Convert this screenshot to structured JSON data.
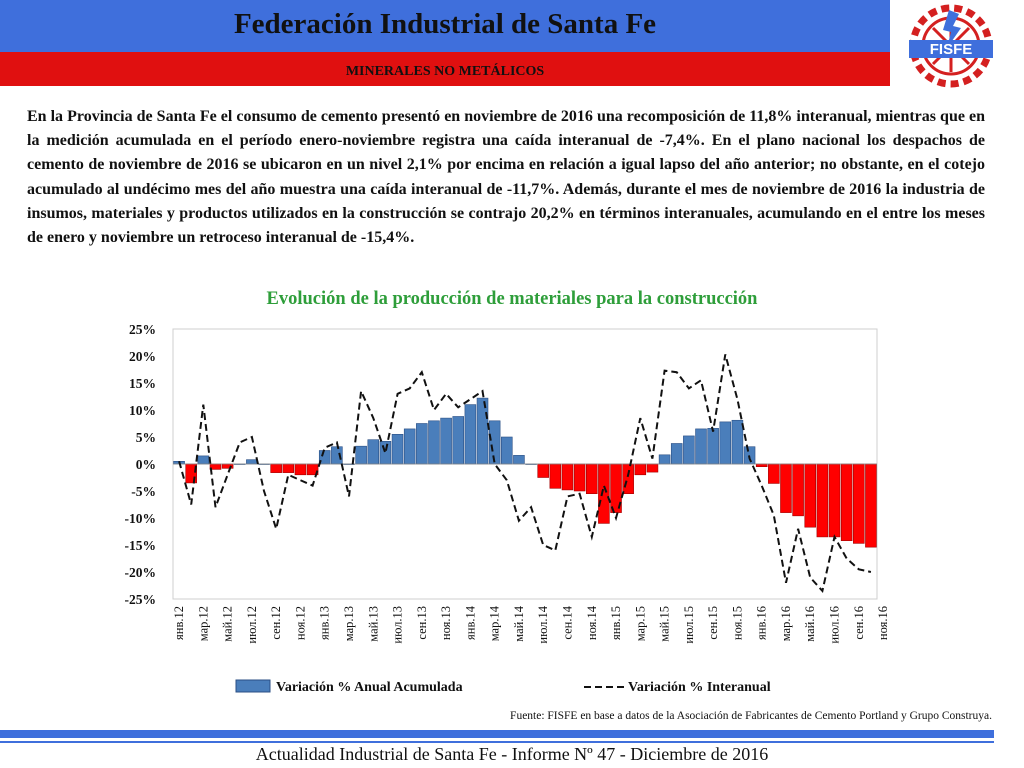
{
  "header": {
    "title": "Federación Industrial de Santa Fe",
    "subtitle": "MINERALES NO METÁLICOS",
    "logo_text": "FISFE",
    "colors": {
      "blue": "#3f6fdc",
      "red": "#e01010"
    }
  },
  "paragraph": "En la Provincia de Santa Fe el consumo de cemento presentó en noviembre de 2016 una recomposición de 11,8% interanual, mientras que en la medición acumulada en el período enero-noviembre registra una caída interanual de -7,4%. En el plano nacional los despachos de cemento de noviembre de 2016 se ubicaron en un nivel 2,1% por encima en relación a igual lapso del año anterior; no obstante, en el cotejo acumulado al undécimo mes del año muestra una caída interanual de -11,7%. Además, durante el mes de noviembre de 2016 la industria de insumos, materiales y productos utilizados en la construcción se contrajo 20,2% en términos interanuales, acumulando en el entre los meses de enero y noviembre un retroceso interanual de -15,4%.",
  "chart_data": {
    "type": "bar",
    "title": "Evolución de la producción de materiales para la construcción",
    "y_ticks": [
      "25%",
      "20%",
      "15%",
      "10%",
      "5%",
      "0%",
      "-5%",
      "-10%",
      "-15%",
      "-20%",
      "-25%"
    ],
    "ylim": [
      -25,
      25
    ],
    "x_tick_labels": [
      "янв.12",
      "мар.12",
      "май.12",
      "июл.12",
      "сен.12",
      "ноя.12",
      "янв.13",
      "мар.13",
      "май.13",
      "июл.13",
      "сен.13",
      "ноя.13",
      "янв.14",
      "мар.14",
      "май.14",
      "июл.14",
      "сен.14",
      "ноя.14",
      "янв.15",
      "мар.15",
      "май.15",
      "июл.15",
      "сен.15",
      "ноя.15",
      "янв.16",
      "мар.16",
      "май.16",
      "июл.16",
      "сен.16",
      "ноя.16"
    ],
    "series": [
      {
        "name": "Variación % Anual Acumulada",
        "kind": "bar",
        "positive_color": "#4a7ebb",
        "negative_color": "#ff0000",
        "values": [
          0.5,
          -3.5,
          1.5,
          -1,
          -0.8,
          0,
          0.8,
          0,
          -1.6,
          -1.6,
          -2,
          -2,
          2.5,
          3.2,
          0,
          3.3,
          4.5,
          4.2,
          5.5,
          6.5,
          7.5,
          8,
          8.5,
          8.8,
          11,
          12.2,
          8,
          5,
          1.6,
          0,
          -2.5,
          -4.5,
          -4.8,
          -5,
          -5.5,
          -11,
          -9,
          -5.5,
          -2,
          -1.5,
          1.7,
          3.8,
          5.2,
          6.5,
          6.6,
          7.8,
          8.1,
          3.2,
          -0.5,
          -3.6,
          -9,
          -9.6,
          -11.7,
          -13.5,
          -13.5,
          -14.2,
          -14.7,
          -15.4
        ]
      },
      {
        "name": "Variación % Interanual",
        "kind": "line",
        "color": "#111111",
        "values": [
          0.5,
          -7.5,
          11,
          -8,
          -2,
          4,
          5,
          -5,
          -12,
          -2,
          -3,
          -4,
          3,
          4,
          -6,
          13.5,
          8.5,
          2,
          13,
          14,
          17,
          10,
          13,
          10.5,
          12,
          13.5,
          0,
          -3,
          -10.5,
          -8,
          -15,
          -16,
          -6,
          -5.5,
          -13.5,
          -4,
          -10,
          -2,
          8.5,
          1,
          17.3,
          17,
          14,
          15.5,
          6,
          20.3,
          12,
          1,
          -4,
          -9.5,
          -22,
          -12,
          -21,
          -23.5,
          -13.5,
          -17.5,
          -19.5,
          -20
        ]
      }
    ],
    "legend_position": "bottom",
    "grid": false
  },
  "source": "Fuente: FISFE en base a datos de la Asociación de Fabricantes de Cemento Portland y Grupo Construya.",
  "footer": "Actualidad Industrial de Santa Fe - Informe Nº 47 - Diciembre de 2016"
}
